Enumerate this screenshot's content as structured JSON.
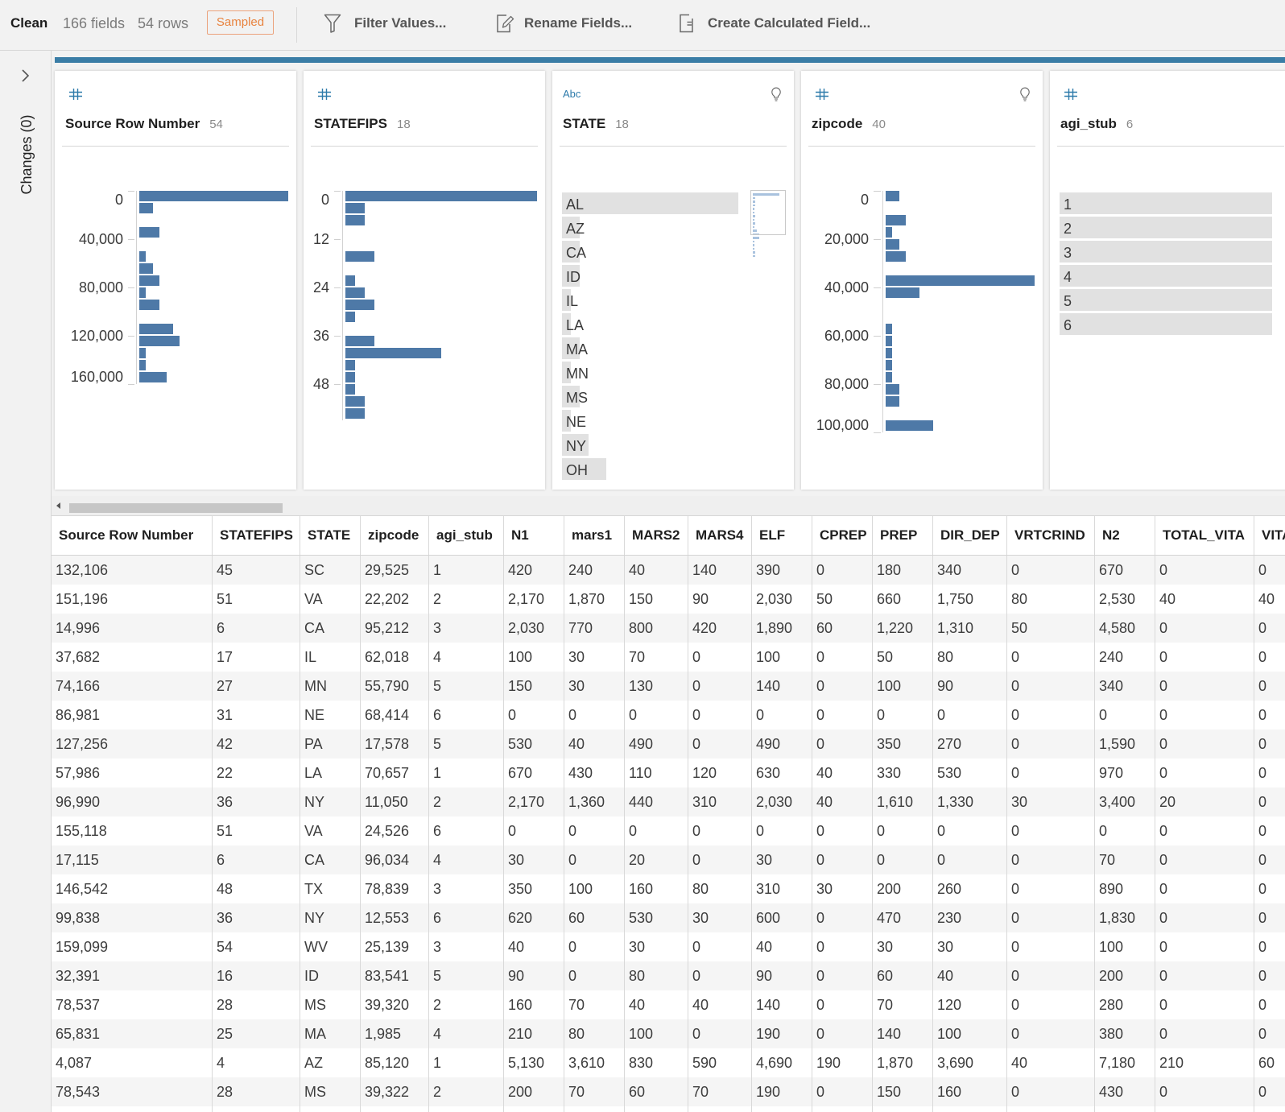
{
  "toolbar": {
    "step_name": "Clean",
    "field_count": "166 fields",
    "row_count": "54 rows",
    "sampled_badge": "Sampled",
    "actions": [
      {
        "label": "Filter Values...",
        "icon": "filter-icon"
      },
      {
        "label": "Rename Fields...",
        "icon": "rename-icon"
      },
      {
        "label": "Create Calculated Field...",
        "icon": "calculated-field-icon"
      }
    ]
  },
  "sidebar": {
    "expand_icon": "chevron-right-icon",
    "changes_label": "Changes (0)"
  },
  "profile_cards": [
    {
      "data_type": "number",
      "type_icon": "number-type-icon",
      "field_name": "Source Row Number",
      "distinct_count": "54",
      "recommendation_icon": false
    },
    {
      "data_type": "number",
      "type_icon": "number-type-icon",
      "field_name": "STATEFIPS",
      "distinct_count": "18",
      "recommendation_icon": false
    },
    {
      "data_type": "string",
      "type_icon": "string-type-icon",
      "type_label": "Abc",
      "field_name": "STATE",
      "distinct_count": "18",
      "recommendation_icon": true
    },
    {
      "data_type": "number",
      "type_icon": "number-type-icon",
      "field_name": "zipcode",
      "distinct_count": "40",
      "recommendation_icon": true
    },
    {
      "data_type": "number",
      "type_icon": "number-type-icon",
      "field_name": "agi_stub",
      "distinct_count": "6",
      "recommendation_icon": false
    }
  ],
  "colors": {
    "accent": "#3a7da6",
    "histogram_bar": "#4e79a7",
    "category_bar": "#e1e1e1",
    "overview_bar": "#a9c2de",
    "type_icon": "#2e7bab",
    "sampled_badge": "#e8833f"
  },
  "chart_data": [
    {
      "field": "Source Row Number",
      "type": "bar",
      "orientation": "horizontal",
      "histogram": true,
      "bin_width": 10000,
      "range": [
        0,
        160000
      ],
      "counts": [
        22,
        2,
        0,
        3,
        0,
        1,
        2,
        3,
        1,
        3,
        0,
        5,
        6,
        1,
        1,
        4
      ],
      "ticks": [
        {
          "value": 0,
          "label": "0"
        },
        {
          "value": 40000,
          "label": "40,000"
        },
        {
          "value": 80000,
          "label": "80,000"
        },
        {
          "value": 120000,
          "label": "120,000"
        },
        {
          "value": 160000,
          "label": "160,000"
        }
      ],
      "xlabel": "",
      "ylabel": ""
    },
    {
      "field": "STATEFIPS",
      "type": "bar",
      "orientation": "horizontal",
      "histogram": true,
      "bin_width": 3,
      "range": [
        0,
        57
      ],
      "counts": [
        20,
        2,
        2,
        0,
        0,
        3,
        0,
        1,
        2,
        3,
        1,
        0,
        3,
        10,
        1,
        1,
        1,
        2,
        2
      ],
      "ticks": [
        {
          "value": 0,
          "label": "0"
        },
        {
          "value": 12,
          "label": "12"
        },
        {
          "value": 24,
          "label": "24"
        },
        {
          "value": 36,
          "label": "36"
        },
        {
          "value": 48,
          "label": "48"
        }
      ],
      "xlabel": "",
      "ylabel": ""
    },
    {
      "field": "STATE",
      "type": "bar",
      "orientation": "horizontal",
      "categories": [
        "AL",
        "AZ",
        "CA",
        "ID",
        "IL",
        "LA",
        "MA",
        "MN",
        "MS",
        "NE",
        "NY",
        "OH"
      ],
      "values": [
        20,
        2,
        2,
        2,
        1,
        1,
        2,
        1,
        2,
        1,
        3,
        5
      ],
      "overview_values": [
        20,
        2,
        2,
        2,
        1,
        1,
        2,
        1,
        2,
        1,
        3,
        5,
        5,
        1,
        1,
        1,
        2,
        2
      ],
      "xlabel": "",
      "ylabel": ""
    },
    {
      "field": "zipcode",
      "type": "bar",
      "orientation": "horizontal",
      "histogram": true,
      "bin_width": 5000,
      "range": [
        0,
        100000
      ],
      "counts": [
        2,
        0,
        3,
        1,
        2,
        3,
        0,
        22,
        5,
        0,
        0,
        1,
        1,
        1,
        1,
        1,
        2,
        2,
        0,
        7
      ],
      "ticks": [
        {
          "value": 0,
          "label": "0"
        },
        {
          "value": 20000,
          "label": "20,000"
        },
        {
          "value": 40000,
          "label": "40,000"
        },
        {
          "value": 60000,
          "label": "60,000"
        },
        {
          "value": 80000,
          "label": "80,000"
        },
        {
          "value": 100000,
          "label": "100,000"
        }
      ],
      "xlabel": "",
      "ylabel": ""
    },
    {
      "field": "agi_stub",
      "type": "bar",
      "orientation": "horizontal",
      "categories": [
        "1",
        "2",
        "3",
        "4",
        "5",
        "6"
      ],
      "values": [
        9,
        9,
        9,
        9,
        9,
        9
      ],
      "xlabel": "",
      "ylabel": ""
    }
  ],
  "table": {
    "columns": [
      "Source Row Number",
      "STATEFIPS",
      "STATE",
      "zipcode",
      "agi_stub",
      "N1",
      "mars1",
      "MARS2",
      "MARS4",
      "ELF",
      "CPREP",
      "PREP",
      "DIR_DEP",
      "VRTCRIND",
      "N2",
      "TOTAL_VITA",
      "VITA"
    ],
    "rows": [
      [
        "132,106",
        "45",
        "SC",
        "29,525",
        "1",
        "420",
        "240",
        "40",
        "140",
        "390",
        "0",
        "180",
        "340",
        "0",
        "670",
        "0",
        "0"
      ],
      [
        "151,196",
        "51",
        "VA",
        "22,202",
        "2",
        "2,170",
        "1,870",
        "150",
        "90",
        "2,030",
        "50",
        "660",
        "1,750",
        "80",
        "2,530",
        "40",
        "40"
      ],
      [
        "14,996",
        "6",
        "CA",
        "95,212",
        "3",
        "2,030",
        "770",
        "800",
        "420",
        "1,890",
        "60",
        "1,220",
        "1,310",
        "50",
        "4,580",
        "0",
        "0"
      ],
      [
        "37,682",
        "17",
        "IL",
        "62,018",
        "4",
        "100",
        "30",
        "70",
        "0",
        "100",
        "0",
        "50",
        "80",
        "0",
        "240",
        "0",
        "0"
      ],
      [
        "74,166",
        "27",
        "MN",
        "55,790",
        "5",
        "150",
        "30",
        "130",
        "0",
        "140",
        "0",
        "100",
        "90",
        "0",
        "340",
        "0",
        "0"
      ],
      [
        "86,981",
        "31",
        "NE",
        "68,414",
        "6",
        "0",
        "0",
        "0",
        "0",
        "0",
        "0",
        "0",
        "0",
        "0",
        "0",
        "0",
        "0"
      ],
      [
        "127,256",
        "42",
        "PA",
        "17,578",
        "5",
        "530",
        "40",
        "490",
        "0",
        "490",
        "0",
        "350",
        "270",
        "0",
        "1,590",
        "0",
        "0"
      ],
      [
        "57,986",
        "22",
        "LA",
        "70,657",
        "1",
        "670",
        "430",
        "110",
        "120",
        "630",
        "40",
        "330",
        "530",
        "0",
        "970",
        "0",
        "0"
      ],
      [
        "96,990",
        "36",
        "NY",
        "11,050",
        "2",
        "2,170",
        "1,360",
        "440",
        "310",
        "2,030",
        "40",
        "1,610",
        "1,330",
        "30",
        "3,400",
        "20",
        "0"
      ],
      [
        "155,118",
        "51",
        "VA",
        "24,526",
        "6",
        "0",
        "0",
        "0",
        "0",
        "0",
        "0",
        "0",
        "0",
        "0",
        "0",
        "0",
        "0"
      ],
      [
        "17,115",
        "6",
        "CA",
        "96,034",
        "4",
        "30",
        "0",
        "20",
        "0",
        "30",
        "0",
        "0",
        "0",
        "0",
        "70",
        "0",
        "0"
      ],
      [
        "146,542",
        "48",
        "TX",
        "78,839",
        "3",
        "350",
        "100",
        "160",
        "80",
        "310",
        "30",
        "200",
        "260",
        "0",
        "890",
        "0",
        "0"
      ],
      [
        "99,838",
        "36",
        "NY",
        "12,553",
        "6",
        "620",
        "60",
        "530",
        "30",
        "600",
        "0",
        "470",
        "230",
        "0",
        "1,830",
        "0",
        "0"
      ],
      [
        "159,099",
        "54",
        "WV",
        "25,139",
        "3",
        "40",
        "0",
        "30",
        "0",
        "40",
        "0",
        "30",
        "30",
        "0",
        "100",
        "0",
        "0"
      ],
      [
        "32,391",
        "16",
        "ID",
        "83,541",
        "5",
        "90",
        "0",
        "80",
        "0",
        "90",
        "0",
        "60",
        "40",
        "0",
        "200",
        "0",
        "0"
      ],
      [
        "78,537",
        "28",
        "MS",
        "39,320",
        "2",
        "160",
        "70",
        "40",
        "40",
        "140",
        "0",
        "70",
        "120",
        "0",
        "280",
        "0",
        "0"
      ],
      [
        "65,831",
        "25",
        "MA",
        "1,985",
        "4",
        "210",
        "80",
        "100",
        "0",
        "190",
        "0",
        "140",
        "100",
        "0",
        "380",
        "0",
        "0"
      ],
      [
        "4,087",
        "4",
        "AZ",
        "85,120",
        "1",
        "5,130",
        "3,610",
        "830",
        "590",
        "4,690",
        "190",
        "1,870",
        "3,690",
        "40",
        "7,180",
        "210",
        "60"
      ],
      [
        "78,543",
        "28",
        "MS",
        "39,322",
        "2",
        "200",
        "70",
        "60",
        "70",
        "190",
        "0",
        "150",
        "160",
        "0",
        "430",
        "0",
        "0"
      ]
    ]
  }
}
